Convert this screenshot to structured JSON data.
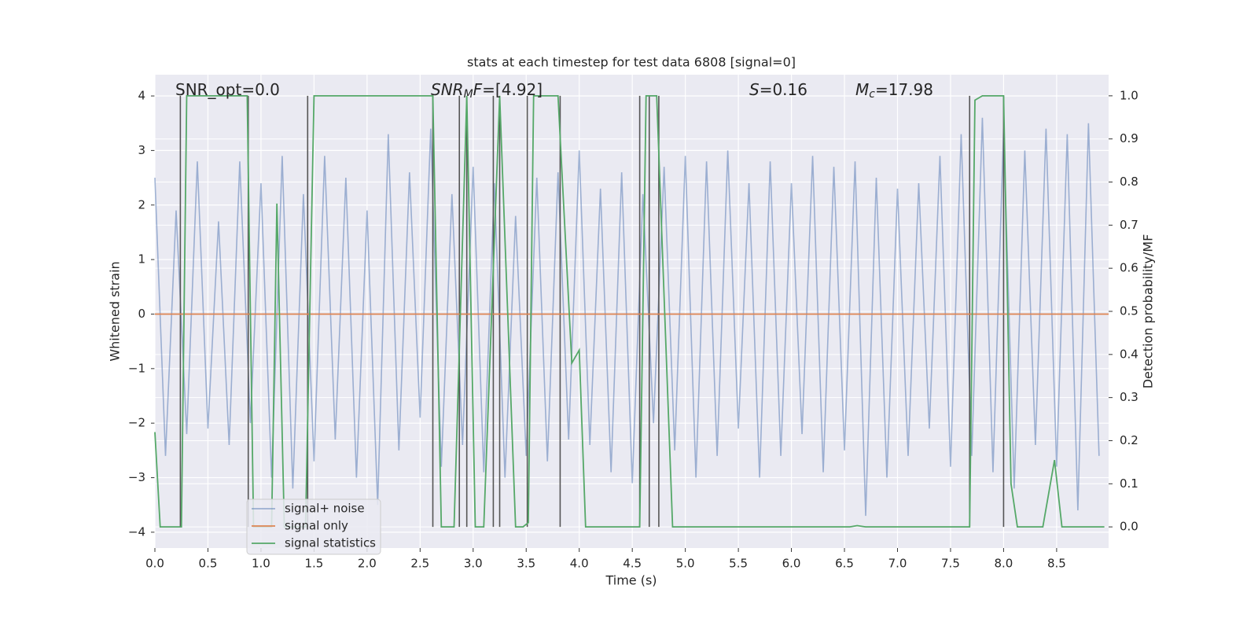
{
  "chart_data": {
    "type": "line",
    "title": "stats at each timestep for test data 6808 [signal=0]",
    "xlabel": "Time (s)",
    "ylabel": "Whitened strain",
    "y2label": "Detection probability/MF",
    "xlim": [
      0,
      8.99
    ],
    "ylim": [
      -4.29,
      4.39
    ],
    "y2lim": [
      -0.049,
      1.049
    ],
    "xticks": [
      {
        "value": 0,
        "label": "0.0"
      },
      0.5,
      {
        "value": 1,
        "label": "1.0"
      },
      1.5,
      {
        "value": 2,
        "label": "2.0"
      },
      2.5,
      {
        "value": 3,
        "label": "3.0"
      },
      3.5,
      {
        "value": 4,
        "label": "4.0"
      },
      4.5,
      {
        "value": 5,
        "label": "5.0"
      },
      5.5,
      {
        "value": 6,
        "label": "6.0"
      },
      6.5,
      {
        "value": 7,
        "label": "7.0"
      },
      7.5,
      {
        "value": 8,
        "label": "8.0"
      },
      8.5
    ],
    "yticks": [
      {
        "value": -4,
        "label": "−4"
      },
      {
        "value": -3,
        "label": "−3"
      },
      {
        "value": -2,
        "label": "−2"
      },
      {
        "value": -1,
        "label": "−1"
      },
      0,
      1,
      2,
      3,
      4
    ],
    "y2ticks": [
      {
        "value": 0,
        "label": "0.0"
      },
      0.1,
      0.2,
      0.3,
      0.4,
      0.5,
      0.6,
      0.7,
      0.8,
      0.9,
      {
        "value": 1,
        "label": "1.0"
      }
    ],
    "grid": true,
    "legend": "lower left",
    "series": [
      {
        "name": "signal+ noise",
        "color": "#4c72b0",
        "alpha": 0.5,
        "axis": "y",
        "x": [
          0.0,
          0.1,
          0.2,
          0.3,
          0.4,
          0.5,
          0.6,
          0.7,
          0.8,
          0.9,
          1.0,
          1.1,
          1.2,
          1.3,
          1.4,
          1.5,
          1.6,
          1.7,
          1.8,
          1.9,
          2.0,
          2.1,
          2.2,
          2.3,
          2.4,
          2.5,
          2.6,
          2.7,
          2.8,
          2.9,
          3.0,
          3.1,
          3.2,
          3.3,
          3.4,
          3.5,
          3.6,
          3.7,
          3.8,
          3.9,
          4.0,
          4.1,
          4.2,
          4.3,
          4.4,
          4.5,
          4.6,
          4.7,
          4.8,
          4.9,
          5.0,
          5.1,
          5.2,
          5.3,
          5.4,
          5.5,
          5.6,
          5.7,
          5.8,
          5.9,
          6.0,
          6.1,
          6.2,
          6.3,
          6.4,
          6.5,
          6.6,
          6.7,
          6.8,
          6.9,
          7.0,
          7.1,
          7.2,
          7.3,
          7.4,
          7.5,
          7.6,
          7.7,
          7.8,
          7.9,
          8.0,
          8.1,
          8.2,
          8.3,
          8.4,
          8.5,
          8.6,
          8.7,
          8.8,
          8.9
        ],
        "values": [
          2.5,
          -2.6,
          1.9,
          -2.2,
          2.8,
          -2.1,
          1.7,
          -2.4,
          2.8,
          -2.0,
          2.4,
          -3.0,
          2.9,
          -3.2,
          2.2,
          -2.7,
          2.9,
          -2.3,
          2.5,
          -3.0,
          1.9,
          -3.5,
          3.3,
          -2.5,
          2.6,
          -1.9,
          3.4,
          -2.8,
          2.2,
          -2.4,
          2.7,
          -2.9,
          2.4,
          -3.0,
          1.8,
          -2.6,
          2.5,
          -2.7,
          2.6,
          -2.3,
          3.0,
          -2.4,
          2.3,
          -2.9,
          2.6,
          -3.1,
          2.2,
          -2.0,
          2.7,
          -2.5,
          2.9,
          -3.0,
          2.8,
          -2.6,
          3.0,
          -2.1,
          2.4,
          -3.0,
          2.8,
          -2.6,
          2.4,
          -2.2,
          2.9,
          -2.9,
          2.7,
          -2.5,
          2.8,
          -3.7,
          2.5,
          -3.0,
          2.3,
          -2.6,
          2.4,
          -2.1,
          2.9,
          -2.8,
          3.3,
          -2.6,
          3.6,
          -2.9,
          3.4,
          -3.2,
          3.0,
          -2.4,
          3.4,
          -2.8,
          3.3,
          -3.6,
          3.5,
          -2.6
        ]
      },
      {
        "name": "signal only",
        "color": "#dd8452",
        "alpha": 1,
        "axis": "y",
        "x": [
          0,
          8.99
        ],
        "values": [
          0,
          0
        ]
      },
      {
        "name": "signal statistics",
        "color": "#55a868",
        "alpha": 1,
        "axis": "y2",
        "x": [
          0,
          0.05,
          0.25,
          0.3,
          0.87,
          0.93,
          1.1,
          1.15,
          1.22,
          1.42,
          1.5,
          2.62,
          2.7,
          2.82,
          2.94,
          3.02,
          3.1,
          3.25,
          3.4,
          3.47,
          3.52,
          3.57,
          3.8,
          3.93,
          4.0,
          4.06,
          4.57,
          4.63,
          4.73,
          4.88,
          6.55,
          6.62,
          6.7,
          7.68,
          7.73,
          7.8,
          8.0,
          8.07,
          8.13,
          8.37,
          8.48,
          8.55,
          8.95
        ],
        "values": [
          0.22,
          0,
          0,
          1,
          1,
          0,
          0,
          0.75,
          0,
          0,
          1,
          1,
          0,
          0,
          1,
          0,
          0,
          1,
          0,
          0,
          0.01,
          1,
          1,
          0.38,
          0.41,
          0,
          0,
          1,
          1,
          0,
          0,
          0.003,
          0,
          0,
          0.99,
          1,
          1,
          0.1,
          0,
          0,
          0.155,
          0,
          0
        ]
      }
    ],
    "vlines": {
      "color": "#555555",
      "ymin": 0,
      "ymax": 1,
      "x": [
        0.24,
        0.88,
        1.44,
        2.62,
        2.87,
        2.94,
        3.19,
        3.25,
        3.51,
        3.82,
        4.57,
        4.66,
        4.75,
        7.68,
        8.0
      ]
    },
    "annotations": [
      [
        {
          "text": "SNR_opt=0.0"
        }
      ],
      [
        {
          "text": "SNR",
          "style": "italic"
        },
        {
          "text": "M",
          "style": "italic-sub"
        },
        {
          "text": "F",
          "style": "italic"
        },
        {
          "text": "=[4.92]"
        }
      ],
      [
        {
          "text": "S",
          "style": "italic"
        },
        {
          "text": "=0.16"
        }
      ],
      [
        {
          "text": "M",
          "style": "italic"
        },
        {
          "text": "c",
          "style": "italic-sub"
        },
        {
          "text": "=17.98"
        }
      ]
    ]
  }
}
